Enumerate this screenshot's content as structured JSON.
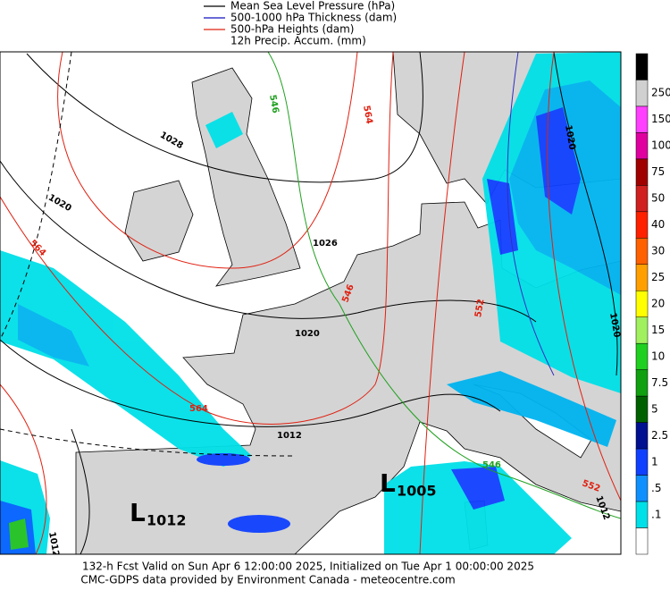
{
  "legend": [
    "Mean Sea Level Pressure (hPa)",
    "500-1000 hPa Thickness (dam)",
    "500-hPa Heights (dam)",
    "12h Precip. Accum. (mm)"
  ],
  "colorbar": {
    "labels": [
      "250",
      "150",
      "100",
      "75",
      "50",
      "40",
      "30",
      "25",
      "20",
      "15",
      "10",
      "7.5",
      "5",
      "2.5",
      "1",
      ".5",
      ".1"
    ]
  },
  "contour_labels": [
    "546",
    "564",
    "1028",
    "1020",
    "564",
    "1026",
    "546",
    "552",
    "1020",
    "564",
    "1012",
    "1020",
    "1020",
    "546",
    "552",
    "1012",
    "1012"
  ],
  "pressure_centers": [
    {
      "letter": "L",
      "value": "1012"
    },
    {
      "letter": "L",
      "value": "1005"
    }
  ],
  "footer": [
    "132-h Fcst Valid on Sun Apr  6 12:00:00 2025, Initialized on Tue Apr  1 00:00:00 2025",
    "CMC-GDPS data provided by Environment Canada - meteocentre.com"
  ]
}
